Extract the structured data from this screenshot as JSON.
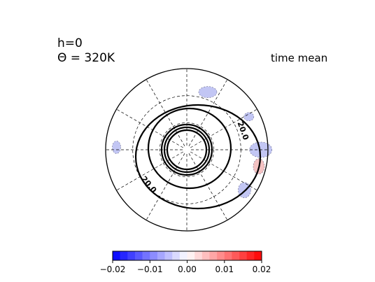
{
  "chart_data": {
    "type": "polar-stereographic contour map",
    "title_lines": [
      "h=0",
      "Θ = 320K"
    ],
    "annotation": "time mean",
    "projection": "polar",
    "grid": true,
    "meridian_spacing_deg": 30,
    "latitude_circles_deg": [
      0,
      30,
      60
    ],
    "contour_labels": [
      "20.0",
      "20.0"
    ],
    "shading": {
      "positive_color": "#f4c2c2",
      "negative_color": "#c2c6f4",
      "patches": [
        {
          "sign": "negative",
          "lon_deg": 20,
          "lat_deg": 22
        },
        {
          "sign": "negative",
          "lon_deg": 90,
          "lat_deg": 8
        },
        {
          "sign": "negative",
          "lon_deg": 62,
          "lat_deg": 12
        },
        {
          "sign": "negative",
          "lon_deg": 125,
          "lat_deg": 12
        },
        {
          "sign": "negative",
          "lon_deg": -88,
          "lat_deg": 12
        },
        {
          "sign": "positive",
          "lon_deg": 103,
          "lat_deg": 8
        }
      ]
    },
    "colorbar": {
      "min": -0.02,
      "max": 0.02,
      "ticks": [
        -0.02,
        -0.01,
        0.0,
        0.01,
        0.02
      ],
      "tick_labels": [
        "−0.02",
        "−0.01",
        "0.00",
        "0.01",
        "0.02"
      ],
      "n_levels": 20,
      "cmap": "blue-white-red",
      "low_color": "#0000ff",
      "high_color": "#ff0000",
      "mid_color": "#ffffff"
    }
  }
}
